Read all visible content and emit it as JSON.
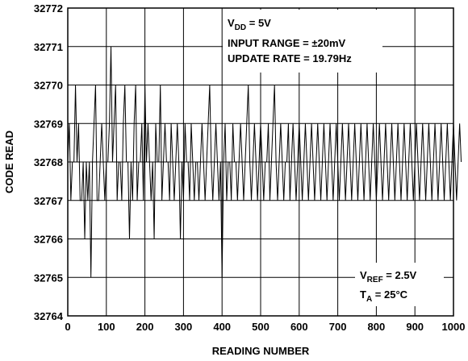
{
  "chart_data": {
    "type": "line",
    "xlabel": "READING NUMBER",
    "ylabel": "CODE READ",
    "xlim": [
      0,
      1000
    ],
    "ylim": [
      32764,
      32772
    ],
    "x_ticks": [
      "0",
      "100",
      "200",
      "300",
      "400",
      "500",
      "600",
      "700",
      "800",
      "900",
      "1000"
    ],
    "y_ticks": [
      "32764",
      "32765",
      "32766",
      "32767",
      "32768",
      "32769",
      "32770",
      "32771",
      "32772"
    ],
    "grid": true,
    "series": [
      {
        "x_start": 0,
        "x_step": 4,
        "values": [
          32768,
          32769,
          32767,
          32768,
          32768,
          32770,
          32768,
          32769,
          32767,
          32767,
          32768,
          32766,
          32768,
          32767,
          32768,
          32765,
          32768,
          32769,
          32770,
          32767,
          32767,
          32768,
          32769,
          32768,
          32767,
          32768,
          32768,
          32769,
          32771,
          32768,
          32769,
          32770,
          32767,
          32768,
          32768,
          32767,
          32769,
          32770,
          32768,
          32768,
          32766,
          32768,
          32767,
          32769,
          32770,
          32767,
          32768,
          32768,
          32769,
          32767,
          32770,
          32768,
          32769,
          32768,
          32767,
          32768,
          32766,
          32769,
          32768,
          32768,
          32770,
          32767,
          32768,
          32769,
          32768,
          32768,
          32767,
          32769,
          32768,
          32767,
          32768,
          32769,
          32768,
          32766,
          32768,
          32767,
          32769,
          32768,
          32768,
          32767,
          32769,
          32768,
          32767,
          32768,
          32768,
          32767,
          32768,
          32769,
          32768,
          32767,
          32768,
          32769,
          32770,
          32768,
          32767,
          32768,
          32769,
          32768,
          32767,
          32768,
          32765,
          32768,
          32769,
          32767,
          32768,
          32768,
          32767,
          32769,
          32768,
          32768,
          32767,
          32768,
          32769,
          32768,
          32767,
          32768,
          32769,
          32770,
          32768,
          32767,
          32768,
          32769,
          32768,
          32767,
          32768,
          32769,
          32768,
          32767,
          32768,
          32768,
          32769,
          32767,
          32768,
          32769,
          32770,
          32768,
          32767,
          32768,
          32769,
          32768,
          32767,
          32768,
          32768,
          32769,
          32767,
          32768,
          32769,
          32768,
          32767,
          32768,
          32769,
          32768,
          32767,
          32768,
          32769,
          32768,
          32767,
          32768,
          32769,
          32768,
          32767,
          32768,
          32769,
          32768,
          32767,
          32768,
          32769,
          32768,
          32767,
          32768,
          32769,
          32768,
          32767,
          32768,
          32769,
          32768,
          32767,
          32768,
          32769,
          32768,
          32767,
          32768,
          32769,
          32768,
          32767,
          32768,
          32769,
          32768,
          32767,
          32768,
          32769,
          32768,
          32767,
          32768,
          32769,
          32768,
          32767,
          32768,
          32769,
          32768,
          32767,
          32768,
          32769,
          32768,
          32767,
          32768,
          32769,
          32768,
          32767,
          32768,
          32769,
          32768,
          32767,
          32768,
          32769,
          32768,
          32767,
          32768,
          32769,
          32768,
          32767,
          32768,
          32769,
          32768,
          32767,
          32768,
          32769,
          32768,
          32767,
          32768,
          32769,
          32768,
          32767,
          32768,
          32769,
          32768,
          32767,
          32768,
          32769,
          32768,
          32767,
          32768,
          32769,
          32768,
          32767,
          32768,
          32769,
          32768,
          32767,
          32768,
          32769,
          32768,
          32767,
          32768,
          32769,
          32768
        ]
      }
    ],
    "annotations": {
      "vdd": {
        "main": "V",
        "sub": "DD",
        "rest": " = 5V"
      },
      "input_range": "INPUT RANGE = ±20mV",
      "update_rate": "UPDATE RATE = 19.79Hz",
      "vref": {
        "main": "V",
        "sub": "REF",
        "rest": " = 2.5V"
      },
      "ta": {
        "main": "T",
        "sub": "A",
        "rest": " = 25°C"
      }
    }
  }
}
